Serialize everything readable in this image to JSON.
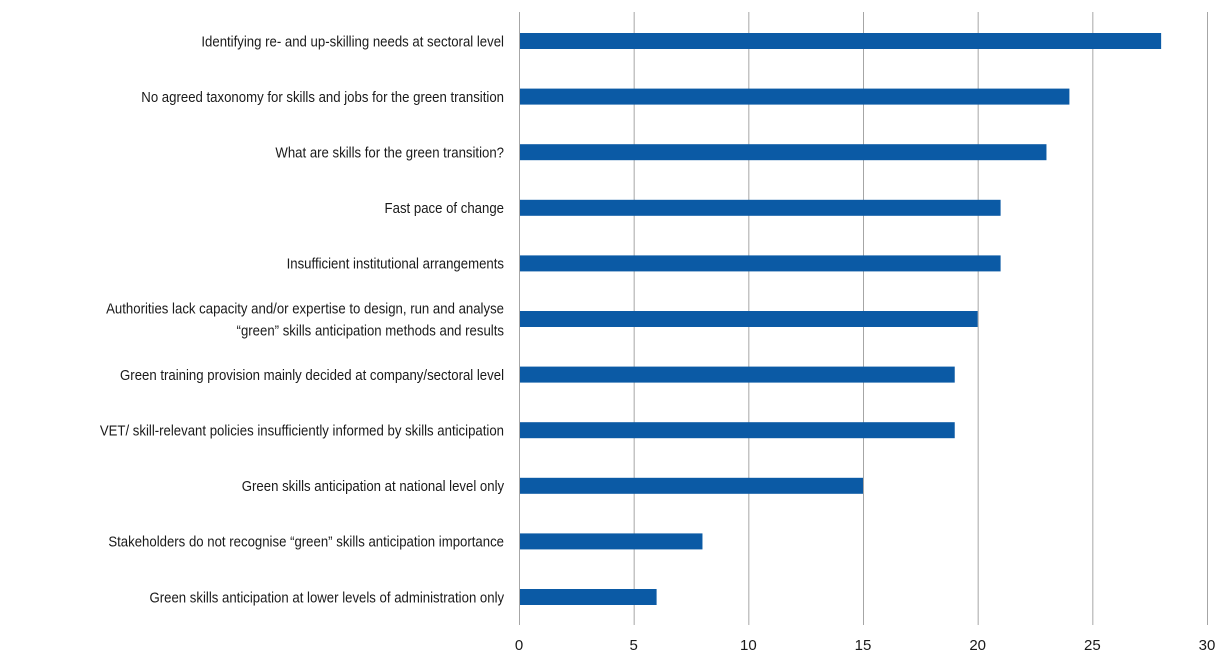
{
  "chart_data": {
    "type": "bar",
    "orientation": "horizontal",
    "title": "",
    "xlabel": "",
    "ylabel": "",
    "categories": [
      "Identifying re- and up-skilling needs at sectoral level",
      "No agreed taxonomy for skills and jobs for the green transition",
      "What are skills for the green transition?",
      "Fast pace of change",
      "Insufficient institutional arrangements",
      "Authorities lack capacity and/or expertise to design, run and analyse “green” skills anticipation methods and results",
      "Green training provision mainly decided at company/sectoral level",
      "VET/ skill-relevant policies insufficiently informed by skills anticipation",
      "Green skills anticipation at national level only",
      "Stakeholders do not recognise “green” skills anticipation importance",
      "Green skills anticipation at lower levels of administration only"
    ],
    "category_label_lines": [
      [
        "Identifying re- and up-skilling needs at sectoral level"
      ],
      [
        "No agreed taxonomy for skills and jobs for the green transition"
      ],
      [
        "What are skills for the green transition?"
      ],
      [
        "Fast pace of change"
      ],
      [
        "Insufficient institutional arrangements"
      ],
      [
        "Authorities lack capacity and/or expertise to design, run and analyse",
        "“green” skills anticipation methods and results"
      ],
      [
        "Green training provision mainly decided at company/sectoral level"
      ],
      [
        "VET/ skill-relevant policies insufficiently informed by skills anticipation"
      ],
      [
        "Green skills anticipation at national level only"
      ],
      [
        "Stakeholders do not recognise “green” skills anticipation importance"
      ],
      [
        "Green skills anticipation at lower levels of administration only"
      ]
    ],
    "values": [
      28,
      24,
      23,
      21,
      21,
      20,
      19,
      19,
      15,
      8,
      6
    ],
    "xlim": [
      0,
      30
    ],
    "xticks": [
      0,
      5,
      10,
      15,
      20,
      25,
      30
    ],
    "grid": "vertical",
    "legend": "none",
    "bar_color": "#0b5aa5",
    "grid_color": "#a6a6a6"
  }
}
